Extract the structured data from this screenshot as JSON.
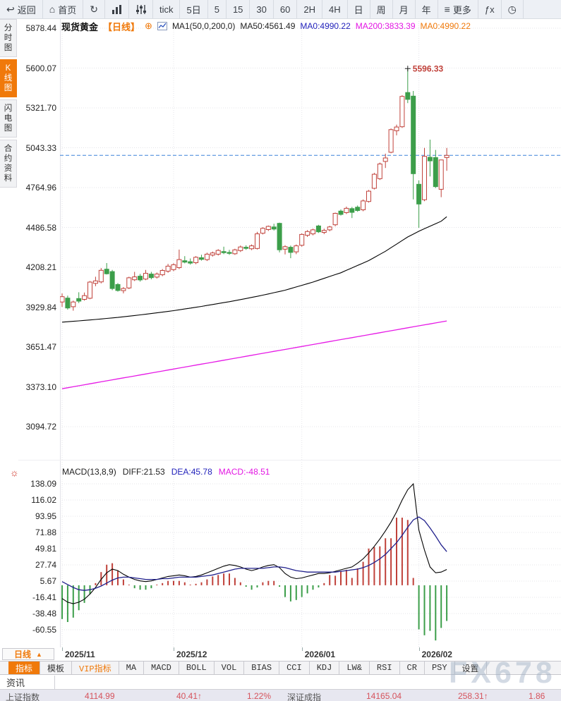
{
  "toolbar": {
    "items": [
      {
        "name": "back-button",
        "icon": "back-icon",
        "label": "返回"
      },
      {
        "name": "home-button",
        "icon": "home-icon",
        "label": "首页"
      },
      {
        "name": "refresh-button",
        "icon": "refresh-icon",
        "label": ""
      },
      {
        "name": "chart-type-button",
        "icon": "bar-chart-icon",
        "label": ""
      },
      {
        "name": "indicator-settings-button",
        "icon": "sliders-icon",
        "label": ""
      },
      {
        "name": "interval-tick-button",
        "label": "tick"
      },
      {
        "name": "interval-5d-button",
        "label": "5日"
      },
      {
        "name": "interval-5-button",
        "label": "5"
      },
      {
        "name": "interval-15-button",
        "label": "15"
      },
      {
        "name": "interval-30-button",
        "label": "30"
      },
      {
        "name": "interval-60-button",
        "label": "60"
      },
      {
        "name": "interval-2h-button",
        "label": "2H"
      },
      {
        "name": "interval-4h-button",
        "label": "4H"
      },
      {
        "name": "interval-day-button",
        "label": "日"
      },
      {
        "name": "interval-week-button",
        "label": "周"
      },
      {
        "name": "interval-month-button",
        "label": "月"
      },
      {
        "name": "interval-year-button",
        "label": "年"
      },
      {
        "name": "more-button",
        "icon": "menu-icon",
        "label": "更多"
      },
      {
        "name": "fx-button",
        "label": "ƒx"
      },
      {
        "name": "clock-button",
        "icon": "clock-icon",
        "label": ""
      }
    ]
  },
  "header": {
    "symbol": "现货黄金",
    "period": "【日线】",
    "plus": "⊕",
    "ma_settings": "MA1(50,0,200,0)",
    "ma50_label": "MA50:4561.49",
    "ma0_blue": "MA0:4990.22",
    "ma200_label": "MA200:3833.39",
    "ma0_orange": "MA0:4990.22"
  },
  "sidebar": {
    "items": [
      {
        "name": "sidebar-item-time-chart",
        "label": "分时图",
        "selected": false
      },
      {
        "name": "sidebar-item-kline-chart",
        "label": "K线图",
        "selected": true
      },
      {
        "name": "sidebar-item-lightning-chart",
        "label": "闪电图",
        "selected": false
      },
      {
        "name": "sidebar-item-contract-info",
        "label": "合约资料",
        "selected": false
      }
    ]
  },
  "macd_header": {
    "formula": "MACD(13,8,9)",
    "diff": "DIFF:21.53",
    "dea": "DEA:45.78",
    "macd": "MACD:-48.51"
  },
  "macd_settings_icon": "☼",
  "period_selector": {
    "label": "日线",
    "arrow": "▲"
  },
  "x_axis_labels": [
    "2025/11",
    "2025/12",
    "2026/01",
    "2026/02"
  ],
  "indicator_tabs": [
    {
      "label": "指标",
      "selected": true
    },
    {
      "label": "模板"
    },
    {
      "label": "VIP指标",
      "vip": true
    },
    {
      "label": "MA"
    },
    {
      "label": "MACD"
    },
    {
      "label": "BOLL"
    },
    {
      "label": "VOL"
    },
    {
      "label": "BIAS"
    },
    {
      "label": "CCI"
    },
    {
      "label": "KDJ"
    },
    {
      "label": "LW&"
    },
    {
      "label": "RSI"
    },
    {
      "label": "CR"
    },
    {
      "label": "PSY"
    },
    {
      "label": "设置"
    }
  ],
  "news_tab": "资讯",
  "ticker": [
    {
      "name": "上证指数",
      "price": "4114.99",
      "change": "40.41↑",
      "pct": "1.22%"
    },
    {
      "name": "深证成指",
      "price": "14165.04",
      "change": "258.31↑",
      "pct": "1.86"
    }
  ],
  "watermark": "FX678",
  "colors": {
    "up": "#c0413a",
    "down": "#3c9e4a",
    "ma50": "#000000",
    "ma200": "#e61ae6",
    "diff": "#000000",
    "dea": "#20208c",
    "accent_orange": "#f0790a",
    "price_line": "#3c82d9",
    "ticker_red": "#d6535c"
  },
  "chart_data": {
    "type": "candlestick",
    "title": "现货黄金 日线",
    "main": {
      "y_ticks": [
        5878.44,
        5600.07,
        5321.7,
        5043.33,
        4764.96,
        4486.58,
        4208.21,
        3929.84,
        3651.47,
        3373.1,
        3094.72
      ],
      "current_price": 4990.22,
      "high_annotation": {
        "value": 5596.33,
        "index": 62
      },
      "month_start_indices": [
        0,
        20,
        43,
        64
      ],
      "candles": [
        [
          3966,
          4026,
          3932,
          4003
        ],
        [
          3993,
          4010,
          3912,
          3924
        ],
        [
          3933,
          3975,
          3905,
          3966
        ],
        [
          3990,
          4034,
          3958,
          3972
        ],
        [
          3984,
          4032,
          3975,
          4010
        ],
        [
          3992,
          4112,
          3985,
          4105
        ],
        [
          4096,
          4142,
          4076,
          4113
        ],
        [
          4106,
          4203,
          4096,
          4187
        ],
        [
          4195,
          4238,
          4158,
          4163
        ],
        [
          4178,
          4190,
          4048,
          4060
        ],
        [
          4088,
          4098,
          4038,
          4046
        ],
        [
          4045,
          4070,
          4026,
          4060
        ],
        [
          4064,
          4142,
          4056,
          4135
        ],
        [
          4121,
          4176,
          4112,
          4141
        ],
        [
          4146,
          4162,
          4108,
          4120
        ],
        [
          4126,
          4190,
          4118,
          4166
        ],
        [
          4161,
          4176,
          4124,
          4136
        ],
        [
          4140,
          4172,
          4130,
          4161
        ],
        [
          4156,
          4196,
          4146,
          4186
        ],
        [
          4181,
          4232,
          4170,
          4216
        ],
        [
          4192,
          4236,
          4181,
          4226
        ],
        [
          4206,
          4332,
          4196,
          4262
        ],
        [
          4254,
          4286,
          4236,
          4244
        ],
        [
          4247,
          4270,
          4227,
          4237
        ],
        [
          4240,
          4286,
          4230,
          4278
        ],
        [
          4275,
          4296,
          4255,
          4263
        ],
        [
          4262,
          4310,
          4252,
          4300
        ],
        [
          4293,
          4318,
          4283,
          4308
        ],
        [
          4300,
          4335,
          4290,
          4326
        ],
        [
          4318,
          4352,
          4300,
          4310
        ],
        [
          4312,
          4330,
          4295,
          4305
        ],
        [
          4303,
          4338,
          4295,
          4330
        ],
        [
          4325,
          4360,
          4315,
          4350
        ],
        [
          4348,
          4362,
          4330,
          4340
        ],
        [
          4338,
          4368,
          4328,
          4358
        ],
        [
          4340,
          4456,
          4333,
          4442
        ],
        [
          4446,
          4488,
          4438,
          4480
        ],
        [
          4472,
          4500,
          4462,
          4494
        ],
        [
          4490,
          4512,
          4465,
          4475
        ],
        [
          4515,
          4520,
          4312,
          4330
        ],
        [
          4335,
          4362,
          4298,
          4352
        ],
        [
          4348,
          4360,
          4272,
          4312
        ],
        [
          4316,
          4368,
          4300,
          4358
        ],
        [
          4362,
          4445,
          4352,
          4438
        ],
        [
          4432,
          4468,
          4420,
          4458
        ],
        [
          4442,
          4478,
          4432,
          4470
        ],
        [
          4497,
          4505,
          4448,
          4456
        ],
        [
          4452,
          4478,
          4440,
          4466
        ],
        [
          4470,
          4498,
          4460,
          4490
        ],
        [
          4505,
          4590,
          4495,
          4585
        ],
        [
          4601,
          4612,
          4570,
          4578
        ],
        [
          4590,
          4632,
          4580,
          4620
        ],
        [
          4618,
          4630,
          4552,
          4592
        ],
        [
          4628,
          4640,
          4596,
          4605
        ],
        [
          4610,
          4682,
          4600,
          4672
        ],
        [
          4668,
          4748,
          4660,
          4740
        ],
        [
          4760,
          4868,
          4752,
          4858
        ],
        [
          4827,
          4940,
          4818,
          4930
        ],
        [
          4948,
          5002,
          4902,
          4972
        ],
        [
          5012,
          5178,
          5005,
          5170
        ],
        [
          5162,
          5205,
          5130,
          5188
        ],
        [
          5190,
          5410,
          5182,
          5402
        ],
        [
          5429,
          5596.33,
          5355,
          5381
        ],
        [
          5404,
          5440,
          4682,
          4862
        ],
        [
          4788,
          4815,
          4484,
          4650
        ],
        [
          4680,
          5042,
          4670,
          4983
        ],
        [
          4977,
          5100,
          4843,
          4952
        ],
        [
          4975,
          5028,
          4762,
          4772
        ],
        [
          4753,
          4960,
          4698,
          4958
        ],
        [
          4975,
          5042,
          4882,
          4990.22
        ]
      ],
      "ma50_anchors": [
        [
          0,
          3825
        ],
        [
          5,
          3840
        ],
        [
          10,
          3858
        ],
        [
          15,
          3880
        ],
        [
          20,
          3905
        ],
        [
          25,
          3935
        ],
        [
          30,
          3968
        ],
        [
          35,
          4005
        ],
        [
          40,
          4048
        ],
        [
          45,
          4105
        ],
        [
          50,
          4170
        ],
        [
          55,
          4255
        ],
        [
          58,
          4320
        ],
        [
          60,
          4370
        ],
        [
          62,
          4420
        ],
        [
          64,
          4460
        ],
        [
          66,
          4495
        ],
        [
          68,
          4530
        ],
        [
          69,
          4561.49
        ]
      ],
      "ma200_anchors": [
        [
          0,
          3360
        ],
        [
          69,
          3833.39
        ]
      ]
    },
    "macd": {
      "y_ticks": [
        138.09,
        116.02,
        93.95,
        71.88,
        49.81,
        27.74,
        5.67,
        -16.41,
        -38.48,
        -60.55
      ],
      "diff": [
        -18,
        -23,
        -25,
        -23,
        -19,
        -12,
        -3,
        8,
        17,
        22,
        20,
        15,
        11,
        8,
        6,
        5,
        6,
        8,
        10,
        12,
        13,
        14,
        13,
        11,
        12,
        14,
        17,
        20,
        23,
        26,
        28,
        27,
        25,
        22,
        20,
        22,
        25,
        27,
        28,
        24,
        16,
        11,
        9,
        10,
        12,
        14,
        16,
        16,
        17,
        19,
        21,
        23,
        25,
        30,
        36,
        44,
        53,
        63,
        74,
        86,
        100,
        116,
        130,
        138,
        75,
        48,
        25,
        17,
        18,
        21.53
      ],
      "dea": [
        5,
        1,
        -3,
        -6,
        -7,
        -6,
        -4,
        -1,
        3,
        7,
        10,
        11,
        11,
        10,
        9,
        8,
        8,
        8,
        9,
        9,
        10,
        11,
        11,
        11,
        11,
        12,
        13,
        14,
        16,
        18,
        20,
        22,
        23,
        23,
        23,
        23,
        23,
        24,
        25,
        25,
        24,
        22,
        20,
        19,
        18,
        18,
        18,
        18,
        18,
        18,
        19,
        20,
        21,
        22,
        24,
        27,
        31,
        36,
        42,
        50,
        58,
        68,
        79,
        89,
        93,
        88,
        78,
        67,
        55,
        45.78
      ],
      "hist": [
        -46,
        -50,
        -44,
        -34,
        -24,
        -12,
        3,
        18,
        28,
        30,
        20,
        8,
        1,
        -4,
        -6,
        -6,
        -4,
        1,
        3,
        6,
        6,
        6,
        4,
        1,
        2,
        4,
        8,
        12,
        14,
        16,
        16,
        10,
        4,
        -2,
        -6,
        -3,
        4,
        6,
        6,
        -2,
        -16,
        -22,
        -20,
        -16,
        -11,
        -6,
        -3,
        3,
        14,
        13,
        19,
        21,
        10,
        23,
        32,
        50,
        52,
        53,
        64,
        64,
        92,
        92,
        89,
        10,
        -60,
        -68,
        -62,
        -75,
        -58,
        -48.51
      ]
    }
  }
}
